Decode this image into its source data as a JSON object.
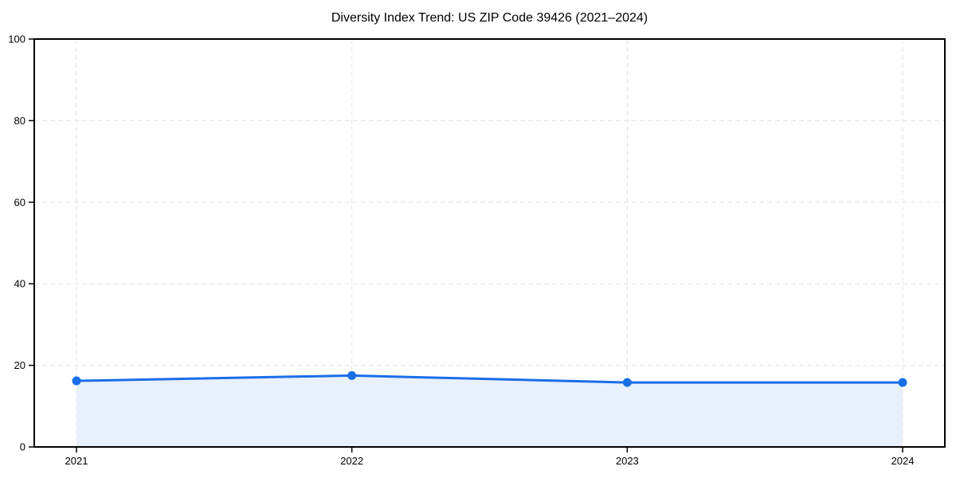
{
  "chart_data": {
    "type": "area",
    "title": "Diversity Index Trend: US ZIP Code 39426 (2021–2024)",
    "categories": [
      "2021",
      "2022",
      "2023",
      "2024"
    ],
    "series": [
      {
        "name": "Diversity Index",
        "values": [
          16.2,
          17.5,
          15.8,
          15.8
        ]
      }
    ],
    "xlabel": "",
    "ylabel": "",
    "ylim": [
      0,
      100
    ],
    "yticks": [
      0,
      20,
      40,
      60,
      80,
      100
    ],
    "grid": "dashed, horizontal and vertical",
    "legend_position": "none",
    "colors": {
      "line": "#1a6ee8",
      "marker": "#1a6ee8",
      "fill": "#e8f0fc",
      "grid": "#e4e4e4",
      "axis": "#000000",
      "tick_text": "#000000",
      "background": "#ffffff"
    }
  }
}
